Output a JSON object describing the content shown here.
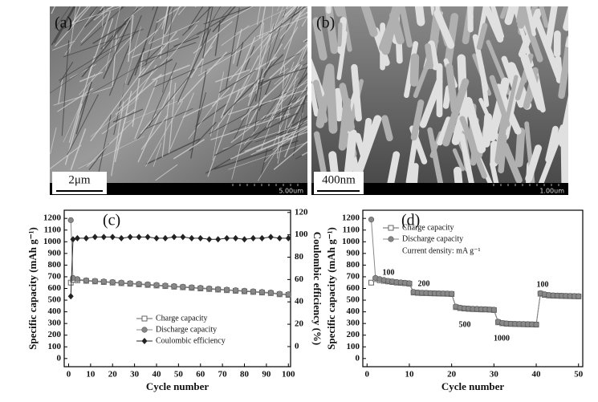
{
  "images": [
    {
      "panel_label": "(a)",
      "scale_bar": "2μm",
      "scale_info": "5.00um"
    },
    {
      "panel_label": "(b)",
      "scale_bar": "400nm",
      "scale_info": "1.00um"
    }
  ],
  "chart_data": [
    {
      "type": "line",
      "panel_label": "(c)",
      "xlabel": "Cycle number",
      "ylabel": "Specific capacity (mAh g⁻¹)",
      "y2label": "Coulombic efficiency (%)",
      "x": [
        1,
        2,
        4,
        8,
        12,
        16,
        20,
        24,
        28,
        32,
        36,
        40,
        44,
        48,
        52,
        56,
        60,
        64,
        68,
        72,
        76,
        80,
        84,
        88,
        92,
        96,
        100
      ],
      "xlim": [
        -2,
        101
      ],
      "xticks": [
        0,
        10,
        20,
        30,
        40,
        50,
        60,
        70,
        80,
        90,
        100
      ],
      "ylim": [
        -70,
        1270
      ],
      "yticks": [
        0,
        100,
        200,
        300,
        400,
        500,
        600,
        700,
        800,
        900,
        1000,
        1100,
        1200
      ],
      "y2lim": [
        -18,
        122
      ],
      "y2ticks": [
        0,
        20,
        40,
        60,
        80,
        100,
        120
      ],
      "legend": "lower center",
      "series": [
        {
          "name": "Charge capacity",
          "color": "#666666",
          "marker": "square",
          "values": [
            650,
            675,
            670,
            665,
            660,
            655,
            650,
            645,
            640,
            635,
            630,
            625,
            620,
            615,
            610,
            605,
            600,
            595,
            590,
            585,
            580,
            575,
            570,
            565,
            560,
            550,
            545
          ]
        },
        {
          "name": "Discharge capacity",
          "color": "#888888",
          "marker": "circle",
          "values": [
            1185,
            690,
            680,
            670,
            665,
            660,
            655,
            650,
            645,
            640,
            635,
            630,
            625,
            620,
            615,
            610,
            605,
            600,
            595,
            590,
            585,
            580,
            575,
            570,
            565,
            555,
            550
          ]
        },
        {
          "name": "Coulombic efficiency",
          "color": "#222222",
          "marker": "diamond",
          "axis": "y2",
          "values": [
            45,
            96,
            97,
            97,
            98,
            98,
            98,
            97,
            98,
            98,
            98,
            97,
            97,
            98,
            98,
            97,
            97,
            96,
            96,
            97,
            97,
            96,
            97,
            97,
            98,
            97,
            97
          ]
        }
      ]
    },
    {
      "type": "line",
      "panel_label": "(d)",
      "xlabel": "Cycle number",
      "ylabel": "Specific capacity (mAh g⁻¹)",
      "x": [
        1,
        2,
        3,
        4,
        5,
        6,
        7,
        8,
        9,
        10,
        11,
        12,
        13,
        14,
        15,
        16,
        17,
        18,
        19,
        20,
        21,
        22,
        23,
        24,
        25,
        26,
        27,
        28,
        29,
        30,
        31,
        32,
        33,
        34,
        35,
        36,
        37,
        38,
        39,
        40,
        41,
        42,
        43,
        44,
        45,
        46,
        47,
        48,
        49,
        50
      ],
      "xlim": [
        -1,
        51
      ],
      "xticks": [
        0,
        10,
        20,
        30,
        40,
        50
      ],
      "ylim": [
        -70,
        1270
      ],
      "yticks": [
        0,
        100,
        200,
        300,
        400,
        500,
        600,
        700,
        800,
        900,
        1000,
        1100,
        1200
      ],
      "legend": "upper left",
      "note": "Current density: mA g⁻¹",
      "annotations": [
        "100",
        "200",
        "500",
        "1000",
        "100"
      ],
      "series": [
        {
          "name": "Charge capacity",
          "color": "#666666",
          "marker": "square",
          "values": [
            650,
            680,
            670,
            665,
            660,
            655,
            650,
            648,
            645,
            640,
            565,
            562,
            560,
            560,
            558,
            557,
            556,
            555,
            554,
            552,
            440,
            432,
            428,
            425,
            423,
            422,
            420,
            420,
            418,
            415,
            310,
            302,
            298,
            296,
            295,
            294,
            293,
            292,
            292,
            290,
            555,
            545,
            540,
            538,
            537,
            536,
            535,
            534,
            533,
            532
          ]
        },
        {
          "name": "Discharge capacity",
          "color": "#888888",
          "marker": "circle",
          "values": [
            1190,
            690,
            680,
            672,
            665,
            660,
            655,
            652,
            648,
            645,
            570,
            566,
            563,
            562,
            560,
            559,
            558,
            557,
            556,
            555,
            445,
            435,
            430,
            428,
            426,
            425,
            423,
            422,
            420,
            418,
            315,
            305,
            300,
            298,
            297,
            296,
            295,
            294,
            293,
            292,
            560,
            550,
            544,
            541,
            539,
            538,
            537,
            536,
            535,
            534
          ]
        }
      ]
    }
  ]
}
